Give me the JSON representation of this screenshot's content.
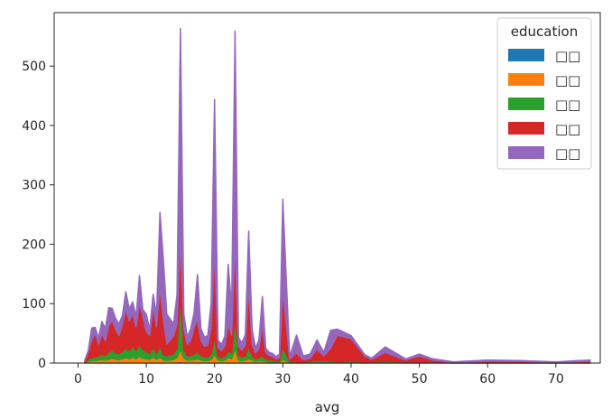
{
  "chart_data": {
    "type": "area",
    "stacked": true,
    "xlabel": "avg",
    "ylabel": "",
    "xlim": [
      -3.5,
      76.5
    ],
    "ylim": [
      0,
      590
    ],
    "xticks": [
      0,
      10,
      20,
      30,
      40,
      50,
      60,
      70
    ],
    "yticks": [
      0,
      100,
      200,
      300,
      400,
      500
    ],
    "grid": false,
    "legend": {
      "title": "education",
      "placement": "top-right",
      "labels": [
        "□□",
        "□□",
        "□□",
        "□□",
        "□□"
      ]
    },
    "x": [
      1,
      1.5,
      2,
      2.5,
      3,
      3.5,
      4,
      4.5,
      5,
      5.5,
      6,
      6.5,
      7,
      7.5,
      8,
      8.5,
      9,
      9.5,
      10,
      10.5,
      11,
      11.5,
      12,
      12.5,
      13,
      13.5,
      14,
      14.5,
      15,
      15.5,
      16,
      16.5,
      17,
      17.5,
      18,
      18.5,
      19,
      19.5,
      20,
      20.5,
      21,
      21.5,
      22,
      22.5,
      23,
      23.5,
      24,
      24.5,
      25,
      25.5,
      26,
      26.5,
      27,
      27.5,
      28,
      28.5,
      29,
      29.5,
      30,
      31,
      32,
      33,
      34,
      35,
      36,
      37,
      38,
      40,
      42,
      43,
      45,
      48,
      50,
      52,
      55,
      60,
      65,
      70,
      75
    ],
    "series": [
      {
        "color": "#1f77b4",
        "values": [
          0,
          1,
          1,
          1,
          1,
          1,
          1,
          1,
          2,
          1,
          1,
          1,
          2,
          1,
          2,
          1,
          2,
          1,
          1,
          1,
          2,
          1,
          2,
          1,
          1,
          1,
          1,
          1,
          3,
          1,
          1,
          1,
          1,
          1,
          1,
          1,
          1,
          1,
          2,
          1,
          1,
          1,
          1,
          1,
          2,
          1,
          1,
          1,
          1,
          1,
          1,
          1,
          1,
          1,
          1,
          1,
          0,
          0,
          1,
          0,
          0,
          0,
          0,
          0,
          0,
          0,
          0,
          0,
          0,
          0,
          0,
          0,
          0,
          0,
          0,
          0,
          0,
          0,
          0
        ]
      },
      {
        "color": "#ff7f0e",
        "values": [
          0,
          2,
          3,
          3,
          4,
          5,
          4,
          5,
          6,
          5,
          5,
          6,
          7,
          6,
          8,
          6,
          9,
          7,
          6,
          5,
          8,
          5,
          8,
          4,
          3,
          4,
          5,
          8,
          20,
          7,
          4,
          4,
          5,
          6,
          4,
          3,
          3,
          5,
          12,
          4,
          3,
          4,
          8,
          6,
          22,
          4,
          3,
          4,
          6,
          4,
          2,
          3,
          3,
          2,
          1,
          1,
          1,
          1,
          5,
          1,
          1,
          1,
          1,
          1,
          1,
          1,
          1,
          1,
          1,
          1,
          1,
          1,
          1,
          1,
          0,
          0,
          0,
          0,
          0
        ]
      },
      {
        "color": "#2ca02c",
        "values": [
          1,
          4,
          5,
          6,
          7,
          9,
          8,
          12,
          14,
          11,
          10,
          13,
          16,
          14,
          18,
          14,
          20,
          15,
          12,
          10,
          16,
          10,
          18,
          9,
          8,
          9,
          10,
          16,
          90,
          14,
          7,
          8,
          9,
          12,
          8,
          6,
          6,
          9,
          30,
          6,
          5,
          6,
          12,
          10,
          55,
          8,
          6,
          7,
          20,
          7,
          4,
          5,
          8,
          4,
          3,
          3,
          2,
          3,
          20,
          2,
          1,
          1,
          2,
          3,
          3,
          2,
          1,
          2,
          1,
          1,
          2,
          1,
          1,
          1,
          0,
          1,
          1,
          0,
          1
        ]
      },
      {
        "color": "#d62728",
        "values": [
          3,
          12,
          30,
          40,
          20,
          35,
          25,
          45,
          50,
          40,
          30,
          45,
          65,
          50,
          55,
          40,
          70,
          55,
          35,
          30,
          70,
          45,
          100,
          60,
          20,
          25,
          30,
          40,
          100,
          35,
          20,
          25,
          45,
          55,
          25,
          18,
          20,
          45,
          150,
          15,
          12,
          18,
          45,
          30,
          130,
          15,
          12,
          18,
          100,
          20,
          10,
          15,
          55,
          10,
          8,
          6,
          4,
          5,
          100,
          4,
          15,
          4,
          5,
          20,
          8,
          22,
          45,
          38,
          10,
          4,
          15,
          3,
          10,
          3,
          1,
          2,
          2,
          1,
          2
        ]
      },
      {
        "color": "#9467bd",
        "values": [
          1,
          2,
          20,
          10,
          10,
          20,
          20,
          30,
          20,
          18,
          20,
          15,
          30,
          20,
          20,
          17,
          46,
          12,
          28,
          10,
          20,
          20,
          126,
          100,
          50,
          35,
          20,
          50,
          350,
          25,
          12,
          20,
          25,
          75,
          20,
          16,
          16,
          40,
          250,
          13,
          10,
          16,
          100,
          45,
          350,
          15,
          12,
          18,
          95,
          25,
          8,
          15,
          45,
          8,
          5,
          5,
          4,
          6,
          150,
          4,
          30,
          6,
          7,
          15,
          6,
          30,
          10,
          5,
          2,
          2,
          9,
          2,
          3,
          2,
          1,
          2,
          1,
          1,
          2
        ]
      }
    ]
  }
}
